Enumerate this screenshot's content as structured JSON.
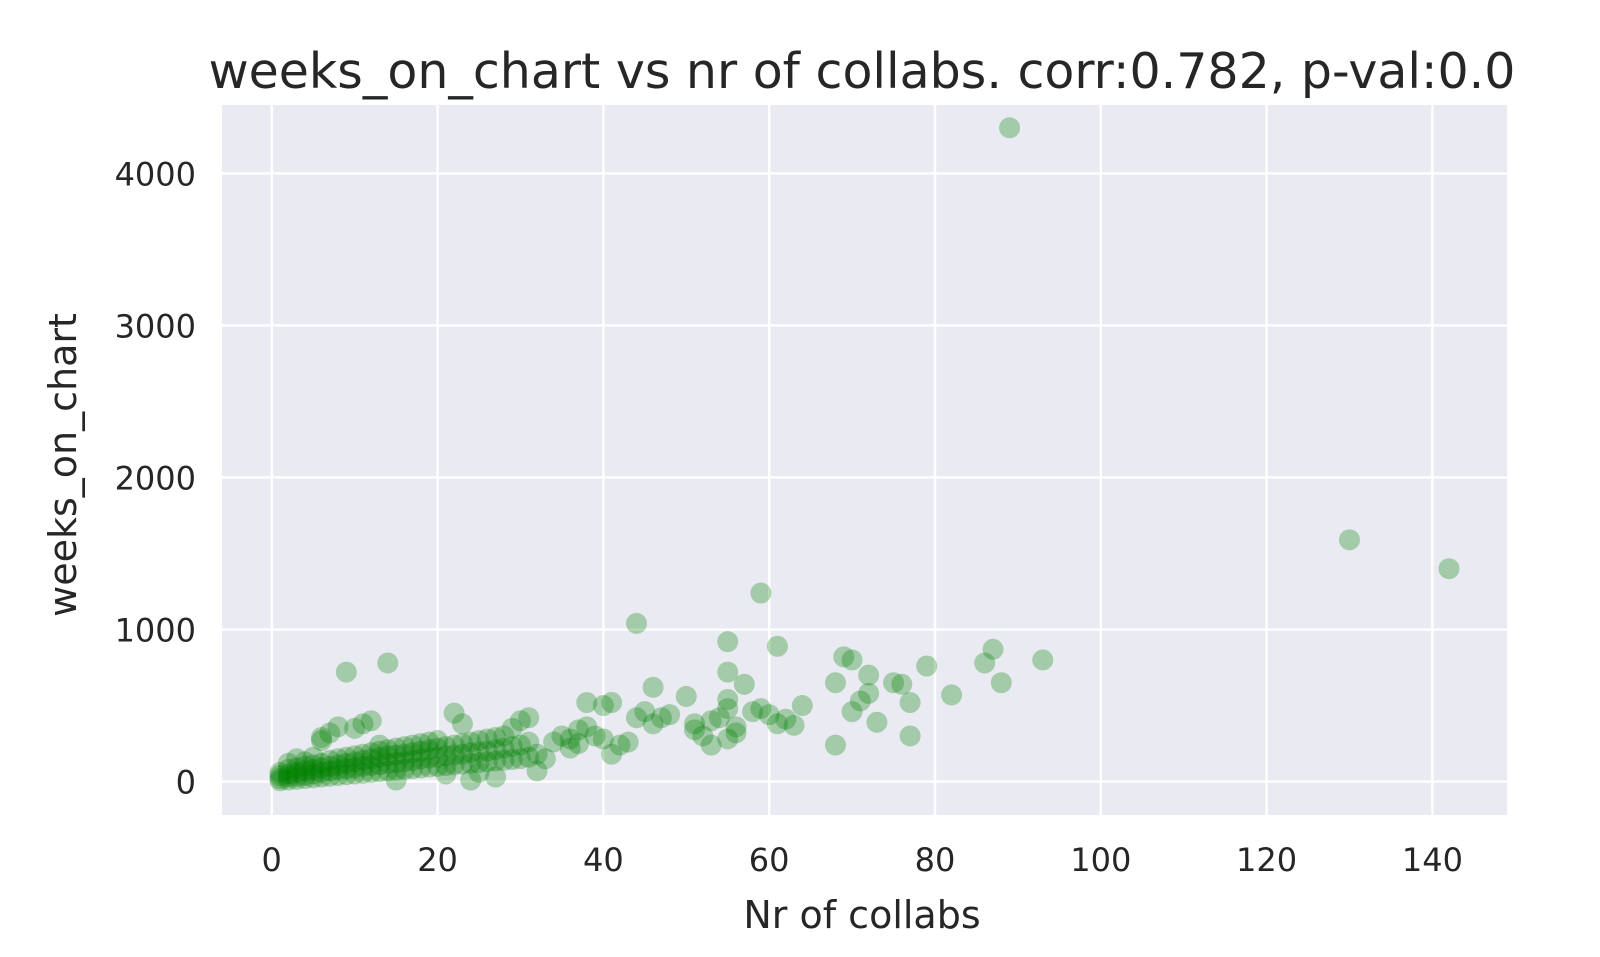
{
  "chart_data": {
    "type": "scatter",
    "title": "weeks_on_chart vs nr of collabs. corr:0.782, p-val:0.0",
    "xlabel": "Nr of collabs",
    "ylabel": "weeks_on_chart",
    "xlim": [
      -6,
      149
    ],
    "ylim": [
      -220,
      4450
    ],
    "xticks": [
      0,
      20,
      40,
      60,
      80,
      100,
      120,
      140
    ],
    "yticks": [
      0,
      1000,
      2000,
      3000,
      4000
    ],
    "xtick_labels": [
      "0",
      "20",
      "40",
      "60",
      "80",
      "100",
      "120",
      "140"
    ],
    "ytick_labels": [
      "0",
      "1000",
      "2000",
      "3000",
      "4000"
    ],
    "grid": true,
    "background_color": "#eaeaf2",
    "point_color": "#008000",
    "point_alpha": 0.3,
    "series": [
      {
        "points": [
          [
            1,
            5
          ],
          [
            1,
            20
          ],
          [
            1,
            40
          ],
          [
            1,
            60
          ],
          [
            2,
            10
          ],
          [
            2,
            30
          ],
          [
            2,
            50
          ],
          [
            2,
            80
          ],
          [
            2,
            120
          ],
          [
            3,
            15
          ],
          [
            3,
            35
          ],
          [
            3,
            60
          ],
          [
            3,
            90
          ],
          [
            3,
            150
          ],
          [
            4,
            20
          ],
          [
            4,
            40
          ],
          [
            4,
            70
          ],
          [
            4,
            100
          ],
          [
            4,
            130
          ],
          [
            5,
            25
          ],
          [
            5,
            50
          ],
          [
            5,
            80
          ],
          [
            5,
            110
          ],
          [
            5,
            160
          ],
          [
            6,
            30
          ],
          [
            6,
            60
          ],
          [
            6,
            90
          ],
          [
            6,
            120
          ],
          [
            6,
            290
          ],
          [
            6,
            270
          ],
          [
            7,
            35
          ],
          [
            7,
            70
          ],
          [
            7,
            100
          ],
          [
            7,
            140
          ],
          [
            7,
            320
          ],
          [
            8,
            40
          ],
          [
            8,
            80
          ],
          [
            8,
            110
          ],
          [
            8,
            150
          ],
          [
            8,
            360
          ],
          [
            9,
            45
          ],
          [
            9,
            85
          ],
          [
            9,
            120
          ],
          [
            9,
            160
          ],
          [
            9,
            720
          ],
          [
            10,
            50
          ],
          [
            10,
            90
          ],
          [
            10,
            130
          ],
          [
            10,
            170
          ],
          [
            10,
            350
          ],
          [
            11,
            55
          ],
          [
            11,
            100
          ],
          [
            11,
            140
          ],
          [
            11,
            180
          ],
          [
            11,
            380
          ],
          [
            12,
            60
          ],
          [
            12,
            105
          ],
          [
            12,
            150
          ],
          [
            12,
            190
          ],
          [
            12,
            400
          ],
          [
            13,
            65
          ],
          [
            13,
            110
          ],
          [
            13,
            160
          ],
          [
            13,
            200
          ],
          [
            13,
            240
          ],
          [
            14,
            70
          ],
          [
            14,
            120
          ],
          [
            14,
            170
          ],
          [
            14,
            210
          ],
          [
            14,
            780
          ],
          [
            15,
            75
          ],
          [
            15,
            125
          ],
          [
            15,
            175
          ],
          [
            15,
            220
          ],
          [
            15,
            10
          ],
          [
            16,
            80
          ],
          [
            16,
            130
          ],
          [
            16,
            180
          ],
          [
            16,
            230
          ],
          [
            17,
            85
          ],
          [
            17,
            140
          ],
          [
            17,
            190
          ],
          [
            17,
            240
          ],
          [
            18,
            90
          ],
          [
            18,
            150
          ],
          [
            18,
            200
          ],
          [
            18,
            250
          ],
          [
            19,
            95
          ],
          [
            19,
            155
          ],
          [
            19,
            210
          ],
          [
            19,
            260
          ],
          [
            20,
            100
          ],
          [
            20,
            160
          ],
          [
            20,
            220
          ],
          [
            20,
            270
          ],
          [
            21,
            105
          ],
          [
            21,
            170
          ],
          [
            21,
            230
          ],
          [
            21,
            50
          ],
          [
            22,
            110
          ],
          [
            22,
            175
          ],
          [
            22,
            240
          ],
          [
            22,
            450
          ],
          [
            23,
            115
          ],
          [
            23,
            180
          ],
          [
            23,
            250
          ],
          [
            23,
            380
          ],
          [
            24,
            120
          ],
          [
            24,
            190
          ],
          [
            24,
            260
          ],
          [
            24,
            10
          ],
          [
            25,
            125
          ],
          [
            25,
            195
          ],
          [
            25,
            270
          ],
          [
            25,
            60
          ],
          [
            26,
            130
          ],
          [
            26,
            200
          ],
          [
            26,
            280
          ],
          [
            27,
            135
          ],
          [
            27,
            210
          ],
          [
            27,
            290
          ],
          [
            27,
            30
          ],
          [
            28,
            140
          ],
          [
            28,
            220
          ],
          [
            28,
            300
          ],
          [
            29,
            145
          ],
          [
            29,
            230
          ],
          [
            29,
            350
          ],
          [
            30,
            150
          ],
          [
            30,
            240
          ],
          [
            30,
            400
          ],
          [
            31,
            160
          ],
          [
            31,
            260
          ],
          [
            31,
            420
          ],
          [
            32,
            70
          ],
          [
            32,
            180
          ],
          [
            33,
            150
          ],
          [
            34,
            260
          ],
          [
            35,
            300
          ],
          [
            36,
            220
          ],
          [
            36,
            280
          ],
          [
            37,
            250
          ],
          [
            37,
            340
          ],
          [
            38,
            360
          ],
          [
            38,
            520
          ],
          [
            39,
            300
          ],
          [
            40,
            280
          ],
          [
            40,
            500
          ],
          [
            41,
            180
          ],
          [
            41,
            520
          ],
          [
            42,
            240
          ],
          [
            43,
            260
          ],
          [
            44,
            420
          ],
          [
            44,
            1040
          ],
          [
            45,
            460
          ],
          [
            46,
            380
          ],
          [
            46,
            620
          ],
          [
            47,
            420
          ],
          [
            48,
            440
          ],
          [
            50,
            560
          ],
          [
            51,
            380
          ],
          [
            51,
            340
          ],
          [
            52,
            300
          ],
          [
            53,
            240
          ],
          [
            53,
            400
          ],
          [
            54,
            420
          ],
          [
            55,
            280
          ],
          [
            55,
            480
          ],
          [
            55,
            540
          ],
          [
            55,
            720
          ],
          [
            55,
            920
          ],
          [
            56,
            320
          ],
          [
            56,
            360
          ],
          [
            57,
            640
          ],
          [
            58,
            460
          ],
          [
            59,
            480
          ],
          [
            59,
            1240
          ],
          [
            60,
            440
          ],
          [
            61,
            380
          ],
          [
            61,
            890
          ],
          [
            62,
            410
          ],
          [
            63,
            370
          ],
          [
            64,
            500
          ],
          [
            68,
            240
          ],
          [
            68,
            650
          ],
          [
            69,
            820
          ],
          [
            70,
            800
          ],
          [
            70,
            460
          ],
          [
            71,
            530
          ],
          [
            72,
            700
          ],
          [
            72,
            580
          ],
          [
            73,
            390
          ],
          [
            75,
            650
          ],
          [
            76,
            640
          ],
          [
            77,
            520
          ],
          [
            77,
            300
          ],
          [
            79,
            760
          ],
          [
            82,
            570
          ],
          [
            86,
            780
          ],
          [
            87,
            870
          ],
          [
            88,
            650
          ],
          [
            89,
            4300
          ],
          [
            93,
            800
          ],
          [
            130,
            1590
          ],
          [
            142,
            1400
          ]
        ]
      }
    ]
  }
}
